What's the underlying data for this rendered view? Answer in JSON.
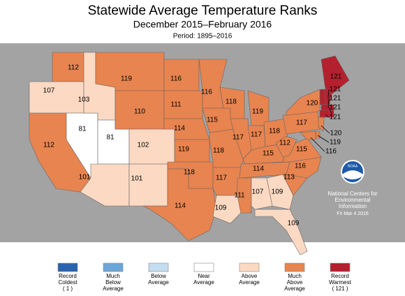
{
  "header": {
    "title": "Statewide Average Temperature Ranks",
    "subtitle": "December 2015–February 2016",
    "period": "Period: 1895–2016"
  },
  "states": [
    {
      "rank": 112,
      "color": "#e8844f"
    },
    {
      "rank": 107,
      "color": "#fcd9c2"
    },
    {
      "rank": 112,
      "color": "#e8844f"
    },
    {
      "rank": 81,
      "color": "#ffffff"
    },
    {
      "rank": 103,
      "color": "#fcd9c2"
    },
    {
      "rank": 81,
      "color": "#ffffff"
    },
    {
      "rank": 101,
      "color": "#fcd9c2"
    },
    {
      "rank": 119,
      "color": "#e8844f"
    },
    {
      "rank": 110,
      "color": "#e8844f"
    },
    {
      "rank": 102,
      "color": "#fcd9c2"
    },
    {
      "rank": 101,
      "color": "#fcd9c2"
    },
    {
      "rank": 116,
      "color": "#e8844f"
    },
    {
      "rank": 111,
      "color": "#e8844f"
    },
    {
      "rank": 114,
      "color": "#e8844f"
    },
    {
      "rank": 119,
      "color": "#e8844f"
    },
    {
      "rank": 118,
      "color": "#e8844f"
    },
    {
      "rank": 114,
      "color": "#e8844f"
    },
    {
      "rank": 116,
      "color": "#e8844f"
    },
    {
      "rank": 115,
      "color": "#e8844f"
    },
    {
      "rank": 118,
      "color": "#e8844f"
    },
    {
      "rank": 117,
      "color": "#e8844f"
    },
    {
      "rank": 109,
      "color": "#fcd9c2"
    },
    {
      "rank": 118,
      "color": "#e8844f"
    },
    {
      "rank": 117,
      "color": "#e8844f"
    },
    {
      "rank": 119,
      "color": "#e8844f"
    },
    {
      "rank": 117,
      "color": "#e8844f"
    },
    {
      "rank": 118,
      "color": "#e8844f"
    },
    {
      "rank": 115,
      "color": "#e8844f"
    },
    {
      "rank": 114,
      "color": "#e8844f"
    },
    {
      "rank": 111,
      "color": "#e8844f"
    },
    {
      "rank": 107,
      "color": "#fcd9c2"
    },
    {
      "rank": 109,
      "color": "#fcd9c2"
    },
    {
      "rank": 109,
      "color": "#fcd9c2"
    },
    {
      "rank": 113,
      "color": "#e8844f"
    },
    {
      "rank": 116,
      "color": "#e8844f"
    },
    {
      "rank": 115,
      "color": "#e8844f"
    },
    {
      "rank": 112,
      "color": "#e8844f"
    },
    {
      "rank": 117,
      "color": "#e8844f"
    },
    {
      "rank": 120,
      "color": "#e8844f"
    },
    {
      "rank": 121,
      "color": "#b5202e"
    },
    {
      "rank": 121,
      "color": "#b5202e"
    },
    {
      "rank": 121,
      "color": "#b5202e"
    },
    {
      "rank": 121,
      "color": "#b5202e"
    },
    {
      "rank": 121,
      "color": "#b5202e"
    },
    {
      "rank": 120,
      "color": "#e8844f"
    },
    {
      "rank": 119,
      "color": "#e8844f"
    },
    {
      "rank": 116,
      "color": "#e8844f"
    }
  ],
  "legend": [
    {
      "lines": [
        "Record",
        "Coldest",
        "( 1 )"
      ],
      "color": "#2a63ad"
    },
    {
      "lines": [
        "Much",
        "Below",
        "Average"
      ],
      "color": "#6aa6d8"
    },
    {
      "lines": [
        "Below",
        "Average"
      ],
      "color": "#c4ddf0"
    },
    {
      "lines": [
        "Near",
        "Average"
      ],
      "color": "#ffffff"
    },
    {
      "lines": [
        "Above",
        "Average"
      ],
      "color": "#fcd9c2"
    },
    {
      "lines": [
        "Much",
        "Above",
        "Average"
      ],
      "color": "#e8844f"
    },
    {
      "lines": [
        "Record",
        "Warmest",
        "( 121 )"
      ],
      "color": "#b5202e"
    }
  ],
  "credit": {
    "logo": "NOAA",
    "lines": [
      "National Centers for",
      "Environmental",
      "Information"
    ],
    "date": "Fri Mar  4 2016"
  }
}
